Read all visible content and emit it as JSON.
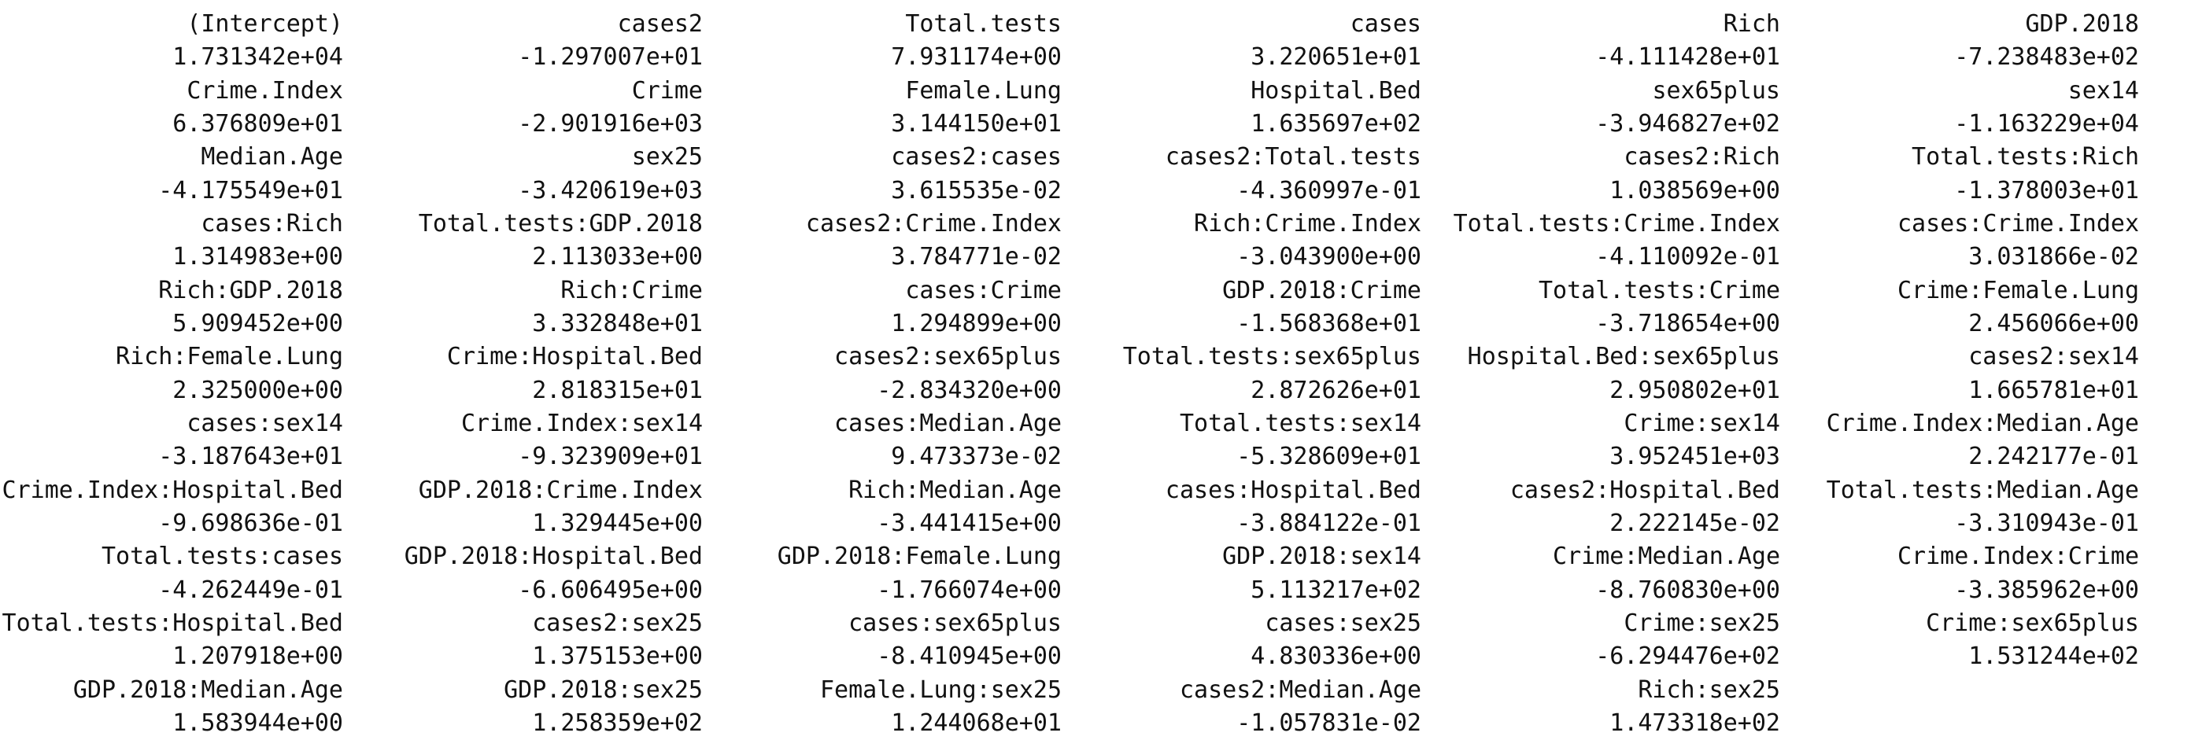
{
  "output": {
    "rows": [
      [
        "(Intercept)",
        "cases2",
        "Total.tests",
        "cases",
        "Rich",
        "GDP.2018"
      ],
      [
        "1.731342e+04",
        "-1.297007e+01",
        "7.931174e+00",
        "3.220651e+01",
        "-4.111428e+01",
        "-7.238483e+02"
      ],
      [
        "Crime.Index",
        "Crime",
        "Female.Lung",
        "Hospital.Bed",
        "sex65plus",
        "sex14"
      ],
      [
        "6.376809e+01",
        "-2.901916e+03",
        "3.144150e+01",
        "1.635697e+02",
        "-3.946827e+02",
        "-1.163229e+04"
      ],
      [
        "Median.Age",
        "sex25",
        "cases2:cases",
        "cases2:Total.tests",
        "cases2:Rich",
        "Total.tests:Rich"
      ],
      [
        "-4.175549e+01",
        "-3.420619e+03",
        "3.615535e-02",
        "-4.360997e-01",
        "1.038569e+00",
        "-1.378003e+01"
      ],
      [
        "cases:Rich",
        "Total.tests:GDP.2018",
        "cases2:Crime.Index",
        "Rich:Crime.Index",
        "Total.tests:Crime.Index",
        "cases:Crime.Index"
      ],
      [
        "1.314983e+00",
        "2.113033e+00",
        "3.784771e-02",
        "-3.043900e+00",
        "-4.110092e-01",
        "3.031866e-02"
      ],
      [
        "Rich:GDP.2018",
        "Rich:Crime",
        "cases:Crime",
        "GDP.2018:Crime",
        "Total.tests:Crime",
        "Crime:Female.Lung"
      ],
      [
        "5.909452e+00",
        "3.332848e+01",
        "1.294899e+00",
        "-1.568368e+01",
        "-3.718654e+00",
        "2.456066e+00"
      ],
      [
        "Rich:Female.Lung",
        "Crime:Hospital.Bed",
        "cases2:sex65plus",
        "Total.tests:sex65plus",
        "Hospital.Bed:sex65plus",
        "cases2:sex14"
      ],
      [
        "2.325000e+00",
        "2.818315e+01",
        "-2.834320e+00",
        "2.872626e+01",
        "2.950802e+01",
        "1.665781e+01"
      ],
      [
        "cases:sex14",
        "Crime.Index:sex14",
        "cases:Median.Age",
        "Total.tests:sex14",
        "Crime:sex14",
        "Crime.Index:Median.Age"
      ],
      [
        "-3.187643e+01",
        "-9.323909e+01",
        "9.473373e-02",
        "-5.328609e+01",
        "3.952451e+03",
        "2.242177e-01"
      ],
      [
        "Crime.Index:Hospital.Bed",
        "GDP.2018:Crime.Index",
        "Rich:Median.Age",
        "cases:Hospital.Bed",
        "cases2:Hospital.Bed",
        "Total.tests:Median.Age"
      ],
      [
        "-9.698636e-01",
        "1.329445e+00",
        "-3.441415e+00",
        "-3.884122e-01",
        "2.222145e-02",
        "-3.310943e-01"
      ],
      [
        "Total.tests:cases",
        "GDP.2018:Hospital.Bed",
        "GDP.2018:Female.Lung",
        "GDP.2018:sex14",
        "Crime:Median.Age",
        "Crime.Index:Crime"
      ],
      [
        "-4.262449e-01",
        "-6.606495e+00",
        "-1.766074e+00",
        "5.113217e+02",
        "-8.760830e+00",
        "-3.385962e+00"
      ],
      [
        "Total.tests:Hospital.Bed",
        "cases2:sex25",
        "cases:sex65plus",
        "cases:sex25",
        "Crime:sex25",
        "Crime:sex65plus"
      ],
      [
        "1.207918e+00",
        "1.375153e+00",
        "-8.410945e+00",
        "4.830336e+00",
        "-6.294476e+02",
        "1.531244e+02"
      ],
      [
        "GDP.2018:Median.Age",
        "GDP.2018:sex25",
        "Female.Lung:sex25",
        "cases2:Median.Age",
        "Rich:sex25",
        ""
      ],
      [
        "1.583944e+00",
        "1.258359e+02",
        "1.244068e+01",
        "-1.057831e-02",
        "1.473318e+02",
        ""
      ]
    ]
  }
}
